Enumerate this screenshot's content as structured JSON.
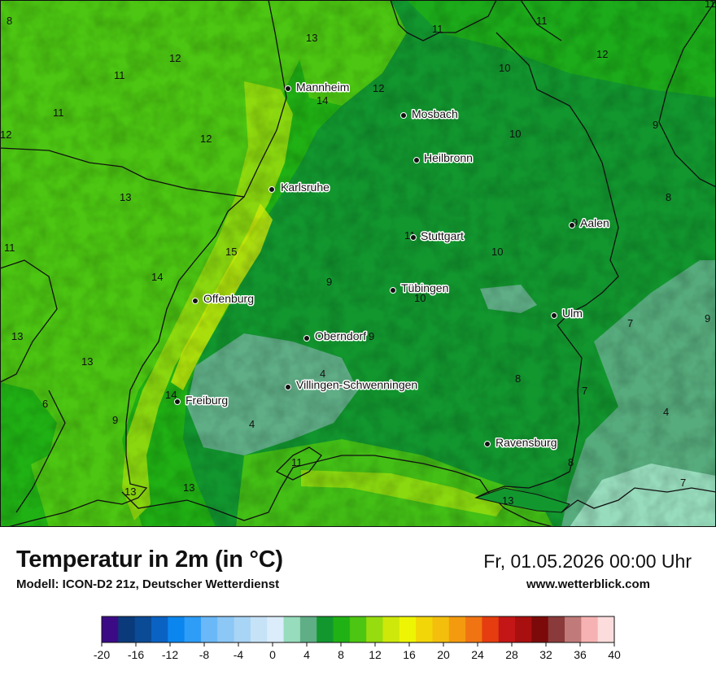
{
  "title": "Temperatur in 2m (in °C)",
  "subtitle": "Modell: ICON-D2 21z, Deutscher Wetterdienst",
  "datetime": "Fr, 01.05.2026 00:00 Uhr",
  "website": "www.wetterblick.com",
  "cities": [
    {
      "name": "Mannheim"
    },
    {
      "name": "Mosbach"
    },
    {
      "name": "Heilbronn"
    },
    {
      "name": "Karlsruhe"
    },
    {
      "name": "Aalen"
    },
    {
      "name": "Stuttgart"
    },
    {
      "name": "Offenburg"
    },
    {
      "name": "Tübingen"
    },
    {
      "name": "Ulm"
    },
    {
      "name": "Oberndorf"
    },
    {
      "name": "Villingen-Schwenningen"
    },
    {
      "name": "Freiburg"
    },
    {
      "name": "Ravensburg"
    }
  ],
  "isotherm_labels": [
    "8",
    "13",
    "12",
    "11",
    "10",
    "11",
    "11",
    "12",
    "11",
    "14",
    "12",
    "12",
    "10",
    "9",
    "12",
    "13",
    "11",
    "8",
    "11",
    "15",
    "14",
    "11",
    "10",
    "9",
    "9",
    "10",
    "13",
    "9",
    "7",
    "13",
    "9",
    "8",
    "4",
    "14",
    "4",
    "6",
    "9",
    "7",
    "4",
    "8",
    "13",
    "13",
    "11",
    "13",
    "7"
  ],
  "legend": {
    "colors": [
      "#3b0b86",
      "#0a3a7a",
      "#0b4a95",
      "#0a62c3",
      "#0b86ee",
      "#2d9df7",
      "#6ab8f7",
      "#8cc7f5",
      "#a8d4f5",
      "#c6e2f7",
      "#dbecfa",
      "#97dcbc",
      "#5fae86",
      "#12972f",
      "#20b114",
      "#4cc612",
      "#96dc0e",
      "#cde80a",
      "#eef504",
      "#f2d608",
      "#f3bf0c",
      "#f49a0f",
      "#f17412",
      "#e53d0f",
      "#c41616",
      "#a80f0f",
      "#7c0a0a",
      "#8a3a3a",
      "#c07a7a",
      "#f6b2b2",
      "#fcdcdc"
    ],
    "ticks": [
      "-20",
      "-16",
      "-12",
      "-8",
      "-4",
      "0",
      "4",
      "8",
      "12",
      "16",
      "20",
      "24",
      "28",
      "32",
      "36",
      "40"
    ]
  }
}
